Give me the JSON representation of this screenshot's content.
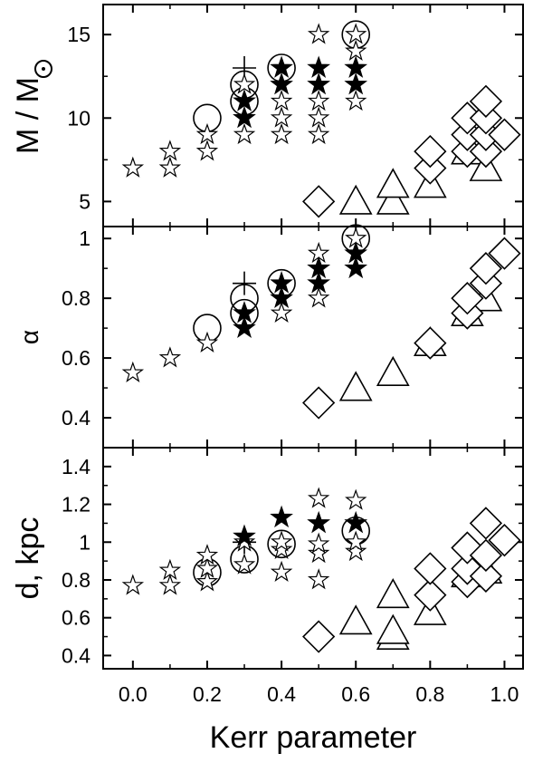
{
  "chart_data": [
    {
      "type": "scatter",
      "ylabel": "M / M⊙",
      "ylim": [
        3.5,
        16.8
      ],
      "yticks": [
        5,
        10,
        15
      ],
      "series": [
        {
          "marker": "open-star",
          "points": [
            [
              0.0,
              7
            ],
            [
              0.1,
              7
            ],
            [
              0.1,
              8
            ],
            [
              0.2,
              8
            ],
            [
              0.2,
              9
            ],
            [
              0.3,
              9
            ],
            [
              0.3,
              10
            ],
            [
              0.3,
              11
            ],
            [
              0.3,
              12
            ],
            [
              0.4,
              9
            ],
            [
              0.4,
              10
            ],
            [
              0.4,
              11
            ],
            [
              0.4,
              12
            ],
            [
              0.4,
              13
            ],
            [
              0.5,
              9
            ],
            [
              0.5,
              10
            ],
            [
              0.5,
              11
            ],
            [
              0.5,
              12
            ],
            [
              0.5,
              13
            ],
            [
              0.5,
              15
            ],
            [
              0.6,
              11
            ],
            [
              0.6,
              12
            ],
            [
              0.6,
              13
            ],
            [
              0.6,
              14
            ],
            [
              0.6,
              15
            ]
          ]
        },
        {
          "marker": "filled-star",
          "points": [
            [
              0.3,
              10
            ],
            [
              0.3,
              11
            ],
            [
              0.4,
              12
            ],
            [
              0.4,
              13
            ],
            [
              0.5,
              12
            ],
            [
              0.5,
              13
            ],
            [
              0.6,
              12
            ],
            [
              0.6,
              13
            ]
          ]
        },
        {
          "marker": "circle",
          "points": [
            [
              0.2,
              10
            ],
            [
              0.3,
              11
            ],
            [
              0.3,
              12
            ],
            [
              0.4,
              13
            ],
            [
              0.6,
              15
            ]
          ]
        },
        {
          "marker": "plus",
          "points": [
            [
              0.3,
              13
            ]
          ]
        },
        {
          "marker": "diamond",
          "points": [
            [
              0.5,
              5
            ],
            [
              0.8,
              7
            ],
            [
              0.8,
              8
            ],
            [
              0.9,
              8
            ],
            [
              0.9,
              9
            ],
            [
              0.9,
              10
            ],
            [
              0.95,
              8
            ],
            [
              0.95,
              9
            ],
            [
              0.95,
              10
            ],
            [
              0.95,
              11
            ],
            [
              1.0,
              9
            ]
          ]
        },
        {
          "marker": "triangle",
          "points": [
            [
              0.6,
              5
            ],
            [
              0.7,
              5
            ],
            [
              0.7,
              6
            ],
            [
              0.8,
              6
            ],
            [
              0.9,
              8
            ],
            [
              0.95,
              7
            ]
          ]
        }
      ]
    },
    {
      "type": "scatter",
      "ylabel": "α",
      "ylim": [
        0.3,
        1.04
      ],
      "yticks": [
        0.4,
        0.6,
        0.8,
        1.0
      ],
      "series": [
        {
          "marker": "open-star",
          "points": [
            [
              0.0,
              0.55
            ],
            [
              0.1,
              0.6
            ],
            [
              0.2,
              0.65
            ],
            [
              0.3,
              0.7
            ],
            [
              0.3,
              0.75
            ],
            [
              0.4,
              0.75
            ],
            [
              0.4,
              0.8
            ],
            [
              0.4,
              0.85
            ],
            [
              0.5,
              0.8
            ],
            [
              0.5,
              0.85
            ],
            [
              0.5,
              0.9
            ],
            [
              0.5,
              0.95
            ],
            [
              0.6,
              0.9
            ],
            [
              0.6,
              0.95
            ],
            [
              0.6,
              1.0
            ]
          ]
        },
        {
          "marker": "filled-star",
          "points": [
            [
              0.3,
              0.7
            ],
            [
              0.3,
              0.75
            ],
            [
              0.4,
              0.8
            ],
            [
              0.4,
              0.85
            ],
            [
              0.5,
              0.85
            ],
            [
              0.5,
              0.9
            ],
            [
              0.6,
              0.9
            ],
            [
              0.6,
              0.95
            ]
          ]
        },
        {
          "marker": "circle",
          "points": [
            [
              0.2,
              0.7
            ],
            [
              0.3,
              0.75
            ],
            [
              0.3,
              0.8
            ],
            [
              0.4,
              0.85
            ],
            [
              0.6,
              1.0
            ]
          ]
        },
        {
          "marker": "plus",
          "points": [
            [
              0.3,
              0.85
            ]
          ]
        },
        {
          "marker": "diamond",
          "points": [
            [
              0.5,
              0.45
            ],
            [
              0.8,
              0.65
            ],
            [
              0.9,
              0.75
            ],
            [
              0.9,
              0.8
            ],
            [
              0.95,
              0.85
            ],
            [
              0.95,
              0.9
            ],
            [
              1.0,
              0.95
            ]
          ]
        },
        {
          "marker": "triangle",
          "points": [
            [
              0.6,
              0.5
            ],
            [
              0.7,
              0.55
            ],
            [
              0.8,
              0.65
            ],
            [
              0.9,
              0.75
            ],
            [
              0.95,
              0.8
            ]
          ]
        }
      ]
    },
    {
      "type": "scatter",
      "xlabel": "Kerr parameter",
      "ylabel": "d,   kpc",
      "ylim": [
        0.33,
        1.5
      ],
      "yticks": [
        0.4,
        0.6,
        0.8,
        1.0,
        1.2,
        1.4
      ],
      "xlim": [
        -0.08,
        1.05
      ],
      "xticks": [
        0.0,
        0.2,
        0.4,
        0.6,
        0.8,
        1.0
      ],
      "series": [
        {
          "marker": "open-star",
          "points": [
            [
              0.0,
              0.77
            ],
            [
              0.1,
              0.77
            ],
            [
              0.1,
              0.85
            ],
            [
              0.2,
              0.79
            ],
            [
              0.2,
              0.86
            ],
            [
              0.2,
              0.93
            ],
            [
              0.3,
              0.88
            ],
            [
              0.3,
              1.0
            ],
            [
              0.4,
              0.84
            ],
            [
              0.4,
              0.96
            ],
            [
              0.4,
              1.0
            ],
            [
              0.5,
              0.8
            ],
            [
              0.5,
              0.94
            ],
            [
              0.5,
              0.99
            ],
            [
              0.5,
              1.1
            ],
            [
              0.5,
              1.23
            ],
            [
              0.6,
              0.95
            ],
            [
              0.6,
              1.0
            ],
            [
              0.6,
              1.1
            ],
            [
              0.6,
              1.22
            ]
          ]
        },
        {
          "marker": "filled-star",
          "points": [
            [
              0.3,
              1.03
            ],
            [
              0.4,
              1.13
            ],
            [
              0.5,
              1.1
            ],
            [
              0.6,
              1.1
            ]
          ]
        },
        {
          "marker": "circle",
          "points": [
            [
              0.2,
              0.84
            ],
            [
              0.3,
              0.91
            ],
            [
              0.4,
              0.99
            ],
            [
              0.6,
              1.06
            ]
          ]
        },
        {
          "marker": "plus",
          "points": [
            [
              0.3,
              1.0
            ]
          ]
        },
        {
          "marker": "diamond",
          "points": [
            [
              0.5,
              0.5
            ],
            [
              0.8,
              0.72
            ],
            [
              0.8,
              0.86
            ],
            [
              0.9,
              0.79
            ],
            [
              0.9,
              0.86
            ],
            [
              0.9,
              0.97
            ],
            [
              0.95,
              0.82
            ],
            [
              0.95,
              0.93
            ],
            [
              0.95,
              1.1
            ],
            [
              1.0,
              1.01
            ]
          ]
        },
        {
          "marker": "triangle",
          "points": [
            [
              0.6,
              0.58
            ],
            [
              0.7,
              0.5
            ],
            [
              0.7,
              0.53
            ],
            [
              0.7,
              0.72
            ],
            [
              0.8,
              0.63
            ],
            [
              0.9,
              0.83
            ],
            [
              0.95,
              0.85
            ]
          ]
        }
      ]
    }
  ]
}
